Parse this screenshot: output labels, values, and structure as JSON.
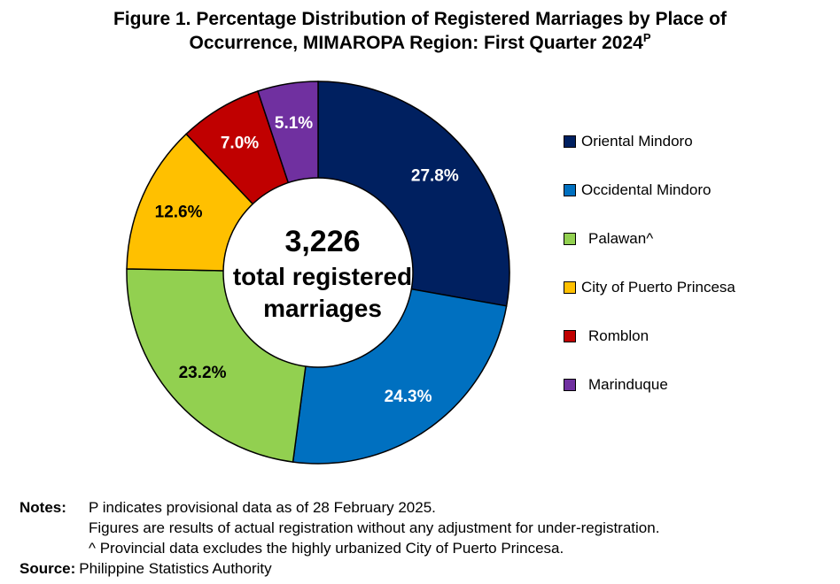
{
  "title": {
    "line1": "Figure 1. Percentage Distribution of Registered Marriages by Place of",
    "line2": "Occurrence, MIMAROPA Region: First Quarter 2024",
    "superscript": "P"
  },
  "center": {
    "total": "3,226",
    "line1": "total registered",
    "line2": "marriages"
  },
  "chart_data": {
    "type": "pie",
    "donut": true,
    "categories": [
      "Oriental Mindoro",
      "Occidental Mindoro",
      "Palawan^",
      "City of Puerto Princesa",
      "Romblon",
      "Marinduque"
    ],
    "values": [
      27.8,
      24.3,
      23.2,
      12.6,
      7.0,
      5.1
    ],
    "labels": [
      "27.8%",
      "24.3%",
      "23.2%",
      "12.6%",
      "7.0%",
      "5.1%"
    ],
    "colors": [
      "#002060",
      "#0070C0",
      "#92D050",
      "#FFC000",
      "#C00000",
      "#7030A0"
    ],
    "label_colors": [
      "#ffffff",
      "#ffffff",
      "#000000",
      "#000000",
      "#ffffff",
      "#ffffff"
    ],
    "legend_position": "right"
  },
  "notes": {
    "label": "Notes:",
    "lines": [
      "P indicates provisional data as of 28 February 2025.",
      "Figures are results of actual registration without any adjustment for under-registration.",
      "^ Provincial data excludes the highly urbanized City of Puerto Princesa."
    ]
  },
  "source": {
    "label": "Source:",
    "text": "Philippine Statistics Authority"
  }
}
